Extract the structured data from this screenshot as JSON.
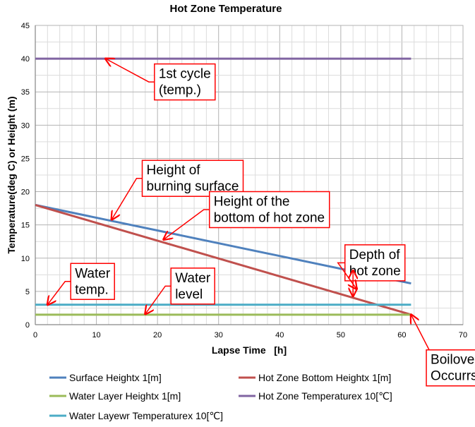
{
  "chart_data": {
    "type": "line",
    "title": "Hot Zone Temperature",
    "xlabel": "Lapse Time   [h]",
    "ylabel": "Temperature(deg C) or Height (m)",
    "xlim": [
      0,
      70
    ],
    "ylim": [
      0,
      45
    ],
    "x_ticks": [
      0,
      10,
      20,
      30,
      40,
      50,
      60,
      70
    ],
    "y_ticks": [
      0,
      5,
      10,
      15,
      20,
      25,
      30,
      35,
      40,
      45
    ],
    "grid": true,
    "legend_position": "bottom",
    "series": [
      {
        "name": "Surface Heightx 1[m]",
        "color": "#4f81bd",
        "x": [
          0,
          61.5
        ],
        "y": [
          18,
          6.2
        ]
      },
      {
        "name": "Hot Zone Bottom Heightx 1[m]",
        "color": "#c0504d",
        "x": [
          0,
          61.5
        ],
        "y": [
          18,
          1.5
        ]
      },
      {
        "name": "Water Layer Heightx 1[m]",
        "color": "#9bbb59",
        "x": [
          0,
          61.5
        ],
        "y": [
          1.5,
          1.5
        ]
      },
      {
        "name": "Hot Zone Temperaturex 10[℃]",
        "color": "#8064a2",
        "x": [
          0,
          61.5
        ],
        "y": [
          40,
          40
        ]
      },
      {
        "name": "Water Layewr Temperaturex 10[℃]",
        "color": "#4bacc6",
        "x": [
          0,
          61.5
        ],
        "y": [
          3,
          3
        ]
      }
    ],
    "annotations": [
      {
        "id": "first-cycle",
        "lines": [
          "1st cycle",
          "(temp.)"
        ],
        "target": [
          11.5,
          40
        ],
        "box_anchor": [
          19.5,
          36.5
        ],
        "placement": "right"
      },
      {
        "id": "burning-surface",
        "lines": [
          "Height of",
          "burning surface"
        ],
        "target": [
          12.5,
          15.8
        ],
        "box_anchor": [
          17.5,
          22.0
        ],
        "placement": "right"
      },
      {
        "id": "hot-zone-bottom",
        "lines": [
          "Height of the",
          "bottom of hot zone"
        ],
        "target": [
          21.0,
          12.8
        ],
        "box_anchor": [
          28.5,
          17.3
        ],
        "placement": "right"
      },
      {
        "id": "water-temp",
        "lines": [
          "Water",
          "temp."
        ],
        "target": [
          2.0,
          3.0
        ],
        "box_anchor": [
          5.8,
          6.5
        ],
        "placement": "right"
      },
      {
        "id": "water-level",
        "lines": [
          "Water",
          "level"
        ],
        "target": [
          18.0,
          1.6
        ],
        "box_anchor": [
          22.2,
          5.8
        ],
        "placement": "right"
      },
      {
        "id": "depth-hot-zone",
        "lines": [
          "Depth of",
          "hot zone"
        ],
        "target": [
          52.8,
          5.8
        ],
        "box_anchor": [
          60.5,
          9.3
        ],
        "placement": "left"
      },
      {
        "id": "boilover",
        "lines": [
          "Boilover",
          "Occurrs"
        ],
        "target": [
          61.5,
          1.5
        ],
        "box_anchor": [
          64.0,
          -6.5
        ],
        "placement": "right"
      }
    ]
  }
}
